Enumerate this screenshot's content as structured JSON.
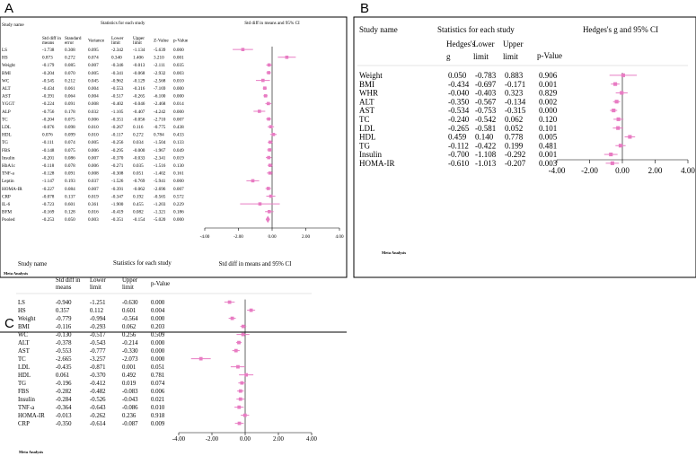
{
  "panels": [
    {
      "label": "A",
      "study_header": "Study name",
      "stats_header": "Statistics for each study",
      "ci_header": "Std diff in means and 95% CI",
      "columns": [
        "Std diff in means",
        "Standard error",
        "Variance",
        "Lower limit",
        "Upper limit",
        "Z-Value",
        "p-Value"
      ],
      "footer": "Meta Analysis"
    },
    {
      "label": "B",
      "study_header": "Study name",
      "stats_header": "Statistics for each study",
      "ci_header": "Hedges's g and 95% CI",
      "columns": [
        "Hedges's g",
        "Lower limit",
        "Upper limit",
        "p-Value"
      ],
      "footer": "Meta Analysis"
    },
    {
      "label": "C",
      "study_header": "Study name",
      "stats_header": "Statistics for each study",
      "ci_header": "Std diff in means and 95% CI",
      "columns": [
        "Std diff in means",
        "Lower limit",
        "Upper limit",
        "p-Value"
      ],
      "footer": "Meta Analysis"
    }
  ],
  "chart_data": [
    {
      "type": "forest",
      "panel": "A",
      "axis_ticks": [
        "-4.00",
        "-2.00",
        "0.00",
        "2.00",
        "4.00"
      ],
      "xlim": [
        -4,
        4
      ],
      "marker_color": "#e87cc3",
      "rows": [
        {
          "name": "LS",
          "cells": [
            "-1.738",
            "0.308",
            "0.095",
            "-2.342",
            "-1.134",
            "-5.639",
            "0.000"
          ],
          "est": -1.738,
          "lo": -2.342,
          "hi": -1.134
        },
        {
          "name": "HS",
          "cells": [
            "0.873",
            "0.272",
            "0.074",
            "0.340",
            "1.406",
            "3.210",
            "0.001"
          ],
          "est": 0.873,
          "lo": 0.34,
          "hi": 1.406
        },
        {
          "name": "Weight",
          "cells": [
            "-0.179",
            "0.085",
            "0.007",
            "-0.346",
            "-0.013",
            "-2.111",
            "0.035"
          ],
          "est": -0.179,
          "lo": -0.346,
          "hi": -0.013
        },
        {
          "name": "BMI",
          "cells": [
            "-0.204",
            "0.070",
            "0.005",
            "-0.341",
            "-0.068",
            "-2.932",
            "0.003"
          ],
          "est": -0.204,
          "lo": -0.341,
          "hi": -0.068
        },
        {
          "name": "WC",
          "cells": [
            "-0.545",
            "0.212",
            "0.045",
            "-0.962",
            "-0.129",
            "-2.568",
            "0.010"
          ],
          "est": -0.545,
          "lo": -0.962,
          "hi": -0.129
        },
        {
          "name": "ALT",
          "cells": [
            "-0.434",
            "0.061",
            "0.004",
            "-0.553",
            "-0.316",
            "-7.169",
            "0.000"
          ],
          "est": -0.434,
          "lo": -0.553,
          "hi": -0.316
        },
        {
          "name": "AST",
          "cells": [
            "-0.391",
            "0.064",
            "0.004",
            "-0.517",
            "-0.265",
            "-6.100",
            "0.000"
          ],
          "est": -0.391,
          "lo": -0.517,
          "hi": -0.265
        },
        {
          "name": "YGGT",
          "cells": [
            "-0.224",
            "0.091",
            "0.008",
            "-0.402",
            "-0.046",
            "-2.468",
            "0.014"
          ],
          "est": -0.224,
          "lo": -0.402,
          "hi": -0.046
        },
        {
          "name": "ALP",
          "cells": [
            "-0.756",
            "0.178",
            "0.032",
            "-1.105",
            "-0.407",
            "-4.242",
            "0.000"
          ],
          "est": -0.756,
          "lo": -1.105,
          "hi": -0.407
        },
        {
          "name": "TC",
          "cells": [
            "-0.204",
            "0.075",
            "0.006",
            "-0.351",
            "-0.056",
            "-2.710",
            "0.007"
          ],
          "est": -0.204,
          "lo": -0.351,
          "hi": -0.056
        },
        {
          "name": "LDL",
          "cells": [
            "-0.076",
            "0.098",
            "0.010",
            "-0.267",
            "0.116",
            "-0.775",
            "0.438"
          ],
          "est": -0.076,
          "lo": -0.267,
          "hi": 0.116
        },
        {
          "name": "HDL",
          "cells": [
            "0.076",
            "0.099",
            "0.010",
            "-0.117",
            "0.272",
            "0.784",
            "0.433"
          ],
          "est": 0.076,
          "lo": -0.117,
          "hi": 0.272
        },
        {
          "name": "TG",
          "cells": [
            "-0.111",
            "0.074",
            "0.005",
            "-0.256",
            "0.034",
            "-1.504",
            "0.133"
          ],
          "est": -0.111,
          "lo": -0.256,
          "hi": 0.034
        },
        {
          "name": "FBS",
          "cells": [
            "-0.148",
            "0.075",
            "0.006",
            "-0.295",
            "-0.000",
            "-1.967",
            "0.049"
          ],
          "est": -0.148,
          "lo": -0.295,
          "hi": 0.0
        },
        {
          "name": "Insulin",
          "cells": [
            "-0.201",
            "0.086",
            "0.007",
            "-0.370",
            "-0.033",
            "-2.341",
            "0.019"
          ],
          "est": -0.201,
          "lo": -0.37,
          "hi": -0.033
        },
        {
          "name": "HbA1c",
          "cells": [
            "-0.118",
            "0.078",
            "0.006",
            "-0.271",
            "0.035",
            "-1.516",
            "0.130"
          ],
          "est": -0.118,
          "lo": -0.271,
          "hi": 0.035
        },
        {
          "name": "TNF-a",
          "cells": [
            "-0.128",
            "0.091",
            "0.008",
            "-0.308",
            "0.051",
            "-1.402",
            "0.161"
          ],
          "est": -0.128,
          "lo": -0.308,
          "hi": 0.051
        },
        {
          "name": "Leptin",
          "cells": [
            "-1.147",
            "0.193",
            "0.037",
            "-1.526",
            "-0.769",
            "-5.941",
            "0.000"
          ],
          "est": -1.147,
          "lo": -1.526,
          "hi": -0.769
        },
        {
          "name": "HOMA-IR",
          "cells": [
            "-0.227",
            "0.084",
            "0.007",
            "-0.391",
            "-0.062",
            "-2.696",
            "0.007"
          ],
          "est": -0.227,
          "lo": -0.391,
          "hi": -0.062
        },
        {
          "name": "CRP",
          "cells": [
            "-0.078",
            "0.137",
            "0.019",
            "-0.347",
            "0.192",
            "-0.565",
            "0.572"
          ],
          "est": -0.078,
          "lo": -0.347,
          "hi": 0.192
        },
        {
          "name": "IL-6",
          "cells": [
            "-0.723",
            "0.601",
            "0.361",
            "-1.900",
            "0.455",
            "-1.203",
            "0.229"
          ],
          "est": -0.723,
          "lo": -1.9,
          "hi": 0.455
        },
        {
          "name": "BFM",
          "cells": [
            "-0.169",
            "0.128",
            "0.016",
            "-0.419",
            "0.082",
            "-1.321",
            "0.186"
          ],
          "est": -0.169,
          "lo": -0.419,
          "hi": 0.082
        },
        {
          "name": "Pooled",
          "cells": [
            "-0.253",
            "0.050",
            "0.003",
            "-0.351",
            "-0.154",
            "-5.020",
            "0.000"
          ],
          "est": -0.253,
          "lo": -0.351,
          "hi": -0.154,
          "pooled": true
        }
      ]
    },
    {
      "type": "forest",
      "panel": "B",
      "axis_ticks": [
        "-4.00",
        "-2.00",
        "0.00",
        "2.00",
        "4.00"
      ],
      "xlim": [
        -4,
        4
      ],
      "marker_color": "#e87cc3",
      "rows": [
        {
          "name": "Weight",
          "cells": [
            "0.050",
            "-0.783",
            "0.883",
            "0.906"
          ],
          "est": 0.05,
          "lo": -0.783,
          "hi": 0.883
        },
        {
          "name": "BMI",
          "cells": [
            "-0.434",
            "-0.697",
            "-0.171",
            "0.001"
          ],
          "est": -0.434,
          "lo": -0.697,
          "hi": -0.171
        },
        {
          "name": "WHR",
          "cells": [
            "-0.040",
            "-0.403",
            "0.323",
            "0.829"
          ],
          "est": -0.04,
          "lo": -0.403,
          "hi": 0.323
        },
        {
          "name": "ALT",
          "cells": [
            "-0.350",
            "-0.567",
            "-0.134",
            "0.002"
          ],
          "est": -0.35,
          "lo": -0.567,
          "hi": -0.134
        },
        {
          "name": "AST",
          "cells": [
            "-0.534",
            "-0.753",
            "-0.315",
            "0.000"
          ],
          "est": -0.534,
          "lo": -0.753,
          "hi": -0.315
        },
        {
          "name": "TC",
          "cells": [
            "-0.240",
            "-0.542",
            "0.062",
            "0.120"
          ],
          "est": -0.24,
          "lo": -0.542,
          "hi": 0.062
        },
        {
          "name": "LDL",
          "cells": [
            "-0.265",
            "-0.581",
            "0.052",
            "0.101"
          ],
          "est": -0.265,
          "lo": -0.581,
          "hi": 0.052
        },
        {
          "name": "HDL",
          "cells": [
            "0.459",
            "0.140",
            "0.778",
            "0.005"
          ],
          "est": 0.459,
          "lo": 0.14,
          "hi": 0.778
        },
        {
          "name": "TG",
          "cells": [
            "-0.112",
            "-0.422",
            "0.199",
            "0.481"
          ],
          "est": -0.112,
          "lo": -0.422,
          "hi": 0.199
        },
        {
          "name": "Insulin",
          "cells": [
            "-0.700",
            "-1.108",
            "-0.292",
            "0.001"
          ],
          "est": -0.7,
          "lo": -1.108,
          "hi": -0.292
        },
        {
          "name": "HOMA-IR",
          "cells": [
            "-0.610",
            "-1.013",
            "-0.207",
            "0.003"
          ],
          "est": -0.61,
          "lo": -1.013,
          "hi": -0.207
        }
      ]
    },
    {
      "type": "forest",
      "panel": "C",
      "axis_ticks": [
        "-4.00",
        "-2.00",
        "0.00",
        "2.00",
        "4.00"
      ],
      "xlim": [
        -4,
        4
      ],
      "marker_color": "#e87cc3",
      "rows": [
        {
          "name": "LS",
          "cells": [
            "-0.940",
            "-1.251",
            "-0.630",
            "0.000"
          ],
          "est": -0.94,
          "lo": -1.251,
          "hi": -0.63
        },
        {
          "name": "HS",
          "cells": [
            "0.357",
            "0.112",
            "0.601",
            "0.004"
          ],
          "est": 0.357,
          "lo": 0.112,
          "hi": 0.601
        },
        {
          "name": "Weight",
          "cells": [
            "-0.779",
            "-0.994",
            "-0.564",
            "0.000"
          ],
          "est": -0.779,
          "lo": -0.994,
          "hi": -0.564
        },
        {
          "name": "BMI",
          "cells": [
            "-0.116",
            "-0.293",
            "0.062",
            "0.203"
          ],
          "est": -0.116,
          "lo": -0.293,
          "hi": 0.062
        },
        {
          "name": "WC",
          "cells": [
            "-0.130",
            "-0.517",
            "0.256",
            "0.509"
          ],
          "est": -0.13,
          "lo": -0.517,
          "hi": 0.256
        },
        {
          "name": "ALT",
          "cells": [
            "-0.378",
            "-0.543",
            "-0.214",
            "0.000"
          ],
          "est": -0.378,
          "lo": -0.543,
          "hi": -0.214
        },
        {
          "name": "AST",
          "cells": [
            "-0.553",
            "-0.777",
            "-0.330",
            "0.000"
          ],
          "est": -0.553,
          "lo": -0.777,
          "hi": -0.33
        },
        {
          "name": "TC",
          "cells": [
            "-2.665",
            "-3.257",
            "-2.073",
            "0.000"
          ],
          "est": -2.665,
          "lo": -3.257,
          "hi": -2.073
        },
        {
          "name": "LDL",
          "cells": [
            "-0.435",
            "-0.871",
            "0.001",
            "0.051"
          ],
          "est": -0.435,
          "lo": -0.871,
          "hi": 0.001
        },
        {
          "name": "HDL",
          "cells": [
            "0.061",
            "-0.370",
            "0.492",
            "0.781"
          ],
          "est": 0.061,
          "lo": -0.37,
          "hi": 0.492
        },
        {
          "name": "TG",
          "cells": [
            "-0.196",
            "-0.412",
            "0.019",
            "0.074"
          ],
          "est": -0.196,
          "lo": -0.412,
          "hi": 0.019
        },
        {
          "name": "FBS",
          "cells": [
            "-0.282",
            "-0.482",
            "-0.083",
            "0.006"
          ],
          "est": -0.282,
          "lo": -0.482,
          "hi": -0.083
        },
        {
          "name": "Insulin",
          "cells": [
            "-0.284",
            "-0.526",
            "-0.043",
            "0.021"
          ],
          "est": -0.284,
          "lo": -0.526,
          "hi": -0.043
        },
        {
          "name": "TNF-a",
          "cells": [
            "-0.364",
            "-0.643",
            "-0.086",
            "0.010"
          ],
          "est": -0.364,
          "lo": -0.643,
          "hi": -0.086
        },
        {
          "name": "HOMA-IR",
          "cells": [
            "-0.013",
            "-0.262",
            "0.236",
            "0.918"
          ],
          "est": -0.013,
          "lo": -0.262,
          "hi": 0.236
        },
        {
          "name": "CRP",
          "cells": [
            "-0.350",
            "-0.614",
            "-0.087",
            "0.009"
          ],
          "est": -0.35,
          "lo": -0.614,
          "hi": -0.087
        }
      ]
    }
  ]
}
